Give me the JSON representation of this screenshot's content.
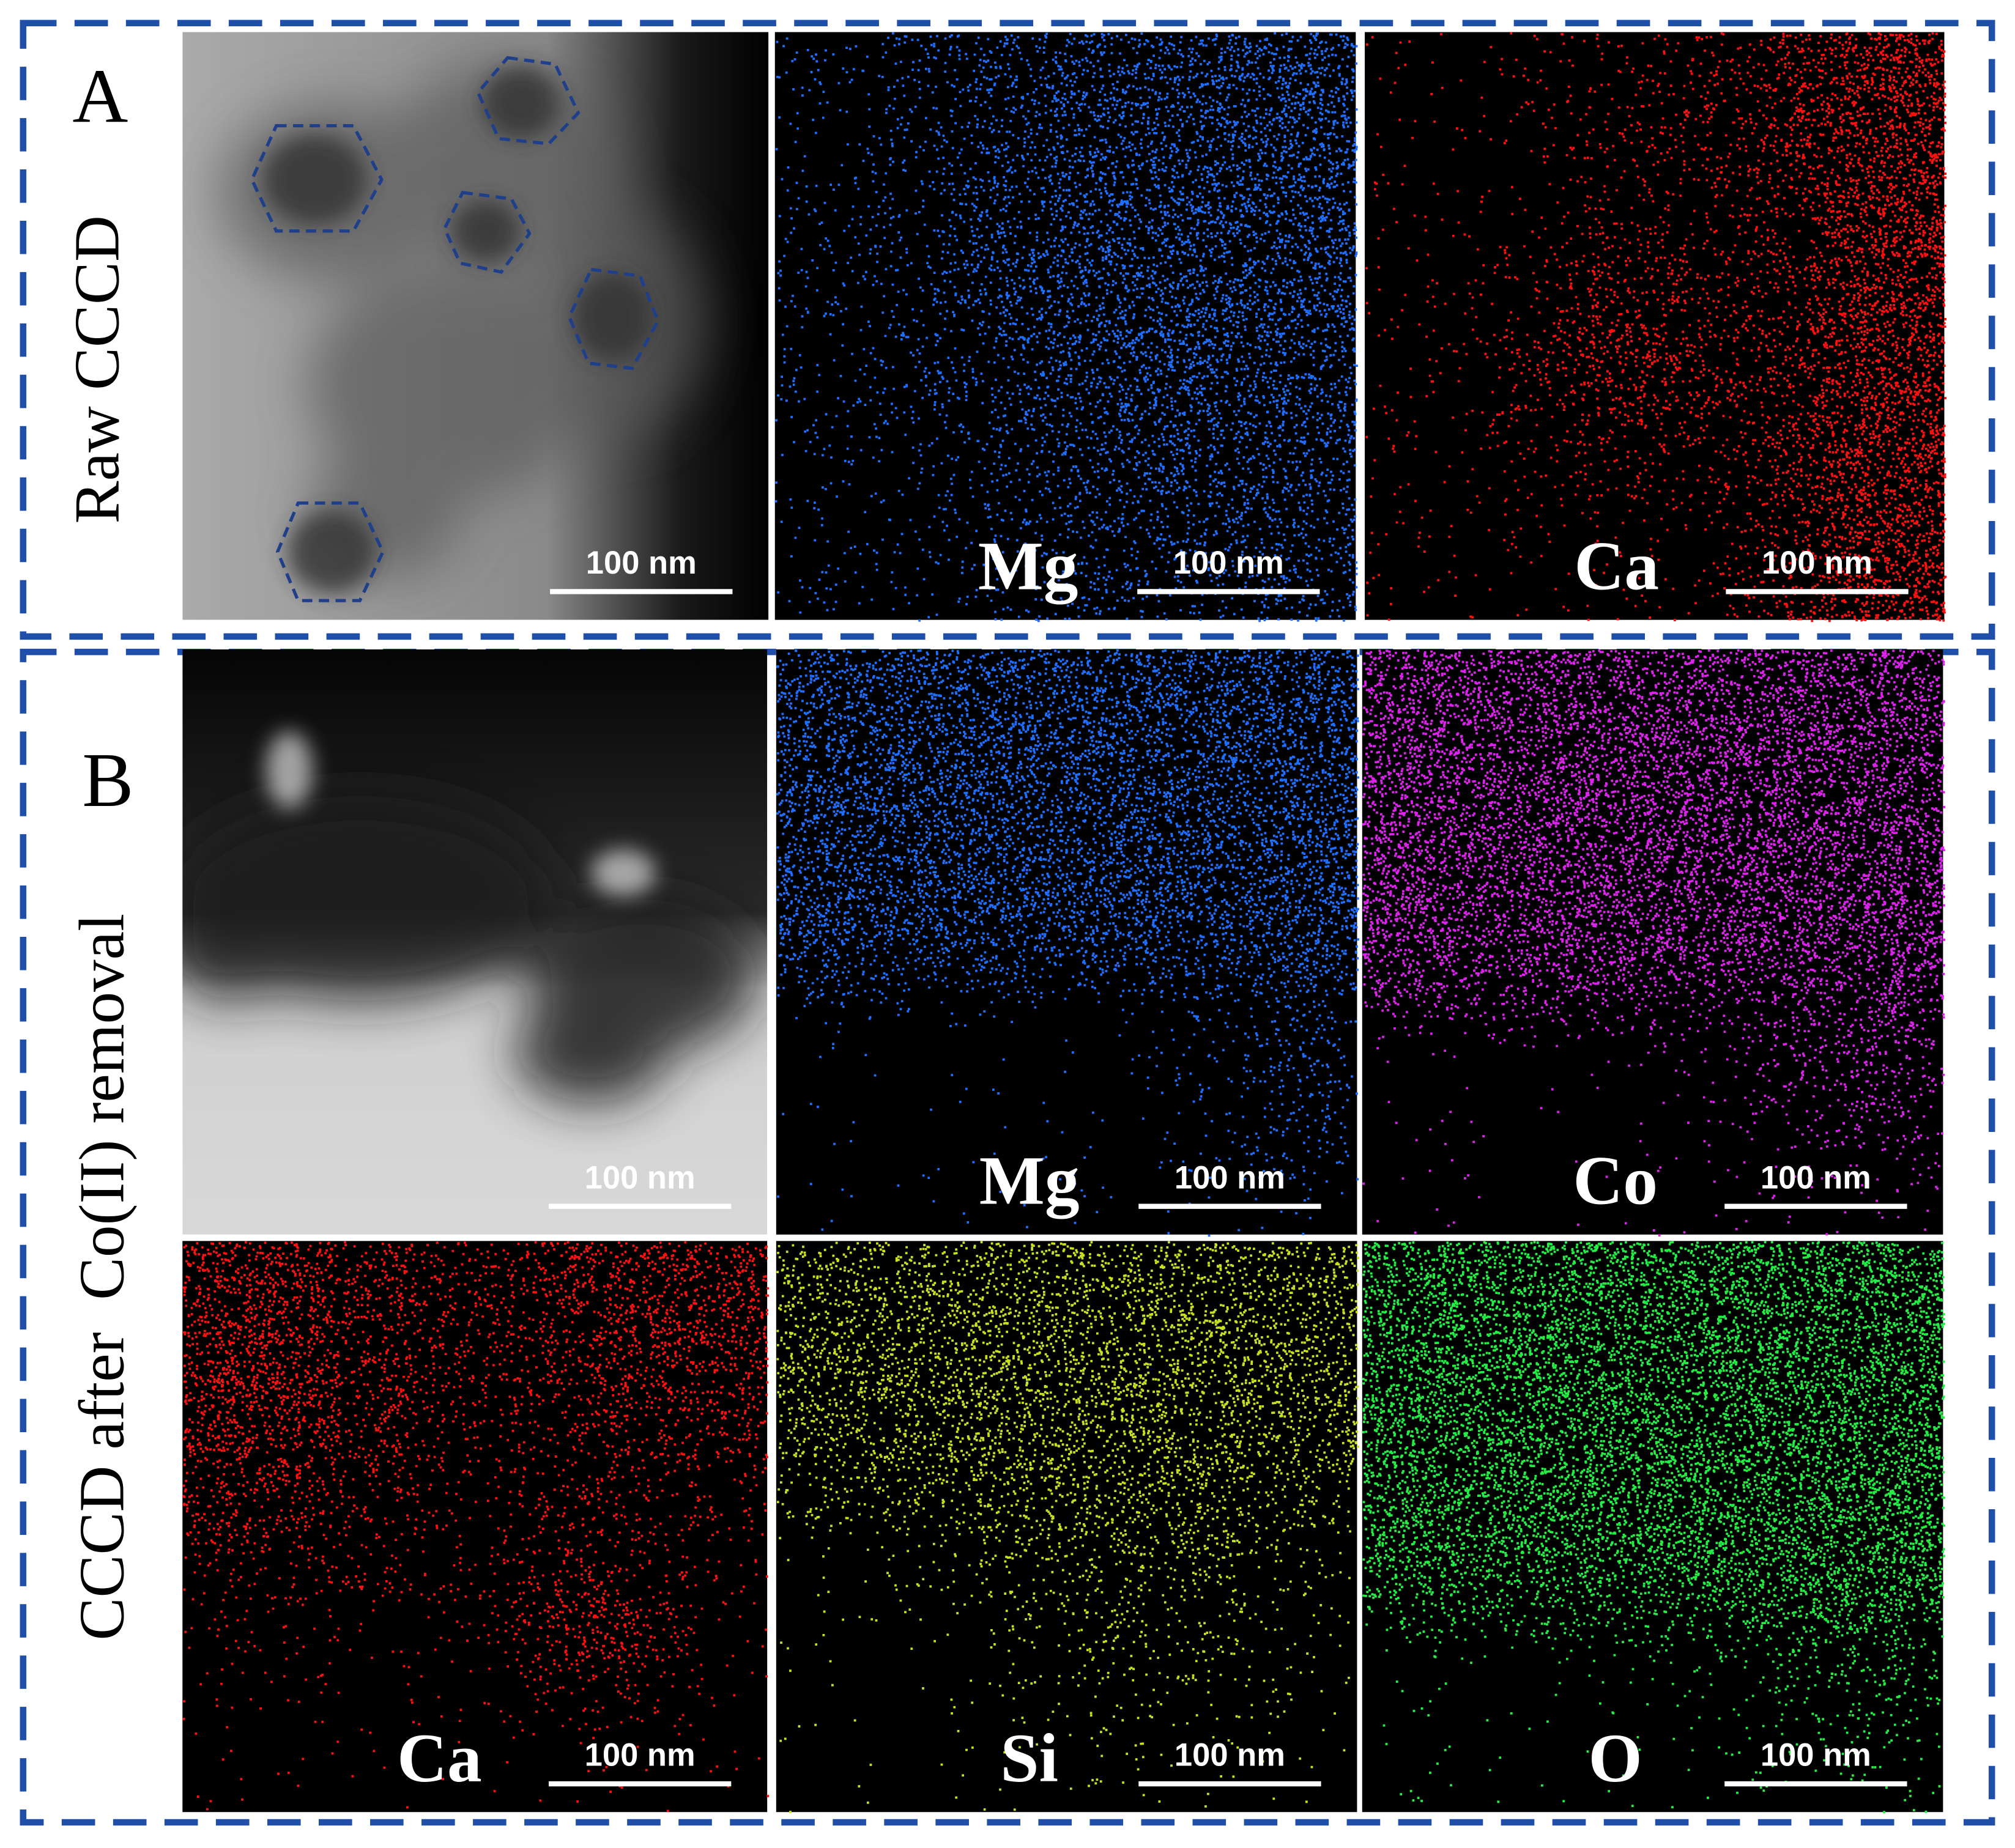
{
  "panels": [
    {
      "label": "A",
      "side_text": "Raw CCCD",
      "images": [
        {
          "scale_bar": "100 nm"
        },
        {
          "element": "Mg",
          "scale_bar": "100 nm"
        },
        {
          "element": "Ca",
          "scale_bar": "100 nm"
        }
      ]
    },
    {
      "label": "B",
      "side_text": "CCCD after  Co(II) removal",
      "images": [
        {
          "scale_bar": "100 nm"
        },
        {
          "element": "Mg",
          "scale_bar": "100 nm"
        },
        {
          "element": "Co",
          "scale_bar": "100 nm"
        },
        {
          "element": "Ca",
          "scale_bar": "100 nm"
        },
        {
          "element": "Si",
          "scale_bar": "100 nm"
        },
        {
          "element": "O",
          "scale_bar": "100 nm"
        }
      ]
    }
  ]
}
